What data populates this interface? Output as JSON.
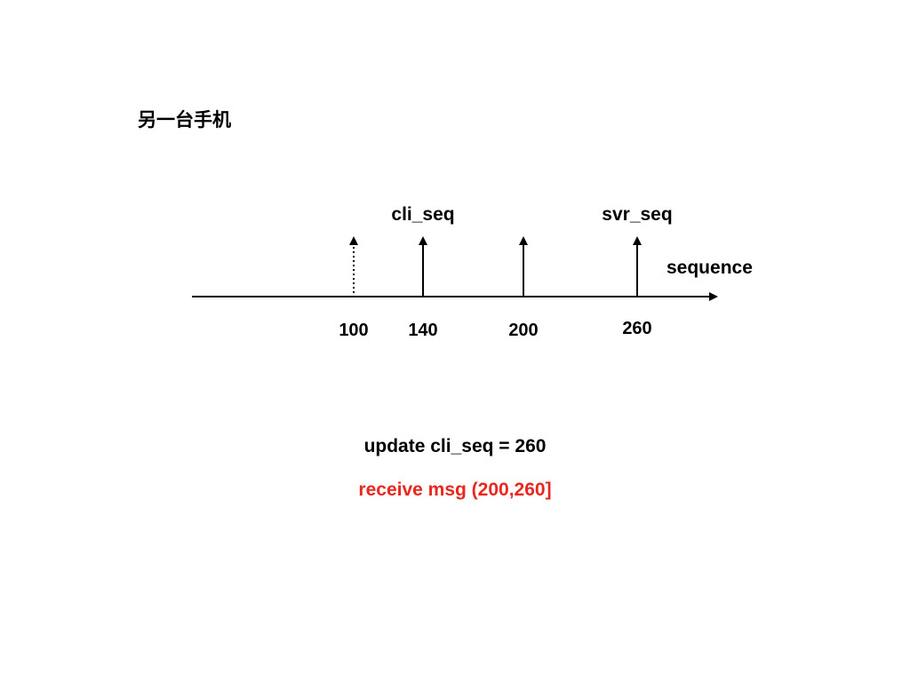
{
  "title": "另一台手机",
  "axis": {
    "label": "sequence"
  },
  "markers": [
    {
      "value": "100",
      "style": "dotted",
      "label": ""
    },
    {
      "value": "140",
      "style": "solid",
      "label": "cli_seq"
    },
    {
      "value": "200",
      "style": "solid",
      "label": ""
    },
    {
      "value": "260",
      "style": "solid",
      "label": "svr_seq"
    }
  ],
  "notes": {
    "update": "update cli_seq = 260",
    "receive": "receive msg (200,260]"
  },
  "colors": {
    "text": "#000000",
    "highlight": "#e8281e"
  }
}
